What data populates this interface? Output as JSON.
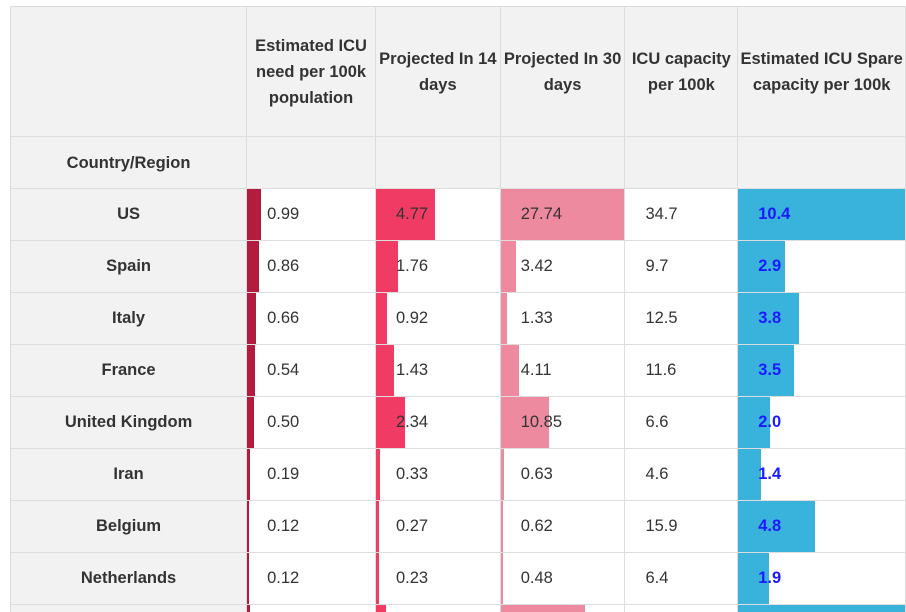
{
  "table": {
    "headers": [
      {
        "key": "country",
        "label": ""
      },
      {
        "key": "icu_need",
        "label": "Estimated ICU need per 100k population"
      },
      {
        "key": "proj14",
        "label": "Projected In 14 days"
      },
      {
        "key": "proj30",
        "label": "Projected In 30 days"
      },
      {
        "key": "capacity",
        "label": "ICU capacity per 100k"
      },
      {
        "key": "spare",
        "label": "Estimated ICU Spare capacity per 100k"
      }
    ],
    "index_label": "Country/Region",
    "colors": {
      "icu_need": "#b31b3f",
      "proj14": "#f03c64",
      "proj30": "#ee8aa0",
      "spare": "#3ab3dc"
    },
    "rows": [
      {
        "country": "US",
        "icu_need": "0.99",
        "proj14": "4.77",
        "proj30": "27.74",
        "capacity": "34.7",
        "spare": "10.4"
      },
      {
        "country": "Spain",
        "icu_need": "0.86",
        "proj14": "1.76",
        "proj30": "3.42",
        "capacity": "9.7",
        "spare": "2.9"
      },
      {
        "country": "Italy",
        "icu_need": "0.66",
        "proj14": "0.92",
        "proj30": "1.33",
        "capacity": "12.5",
        "spare": "3.8"
      },
      {
        "country": "France",
        "icu_need": "0.54",
        "proj14": "1.43",
        "proj30": "4.11",
        "capacity": "11.6",
        "spare": "3.5"
      },
      {
        "country": "United Kingdom",
        "icu_need": "0.50",
        "proj14": "2.34",
        "proj30": "10.85",
        "capacity": "6.6",
        "spare": "2.0"
      },
      {
        "country": "Iran",
        "icu_need": "0.19",
        "proj14": "0.33",
        "proj30": "0.63",
        "capacity": "4.6",
        "spare": "1.4"
      },
      {
        "country": "Belgium",
        "icu_need": "0.12",
        "proj14": "0.27",
        "proj30": "0.62",
        "capacity": "15.9",
        "spare": "4.8"
      },
      {
        "country": "Netherlands",
        "icu_need": "0.12",
        "proj14": "0.23",
        "proj30": "0.48",
        "capacity": "6.4",
        "spare": "1.9"
      }
    ],
    "partial_row_fractions": {
      "icu_need": 0.02,
      "proj14": 0.08,
      "proj30": 0.68,
      "spare": 1.0
    }
  }
}
